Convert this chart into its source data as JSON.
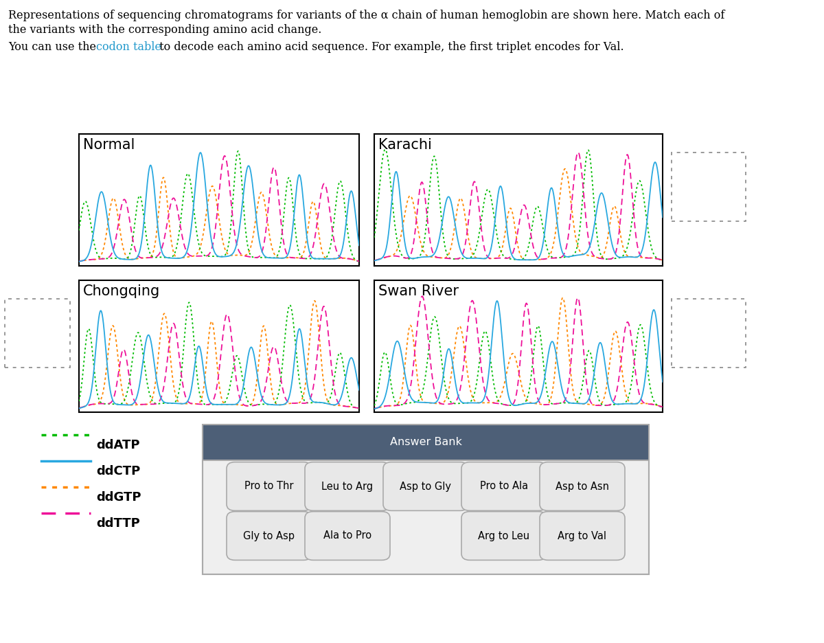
{
  "title_line1": "Representations of sequencing chromatograms for variants of the α chain of human hemoglobin are shown here. Match each of",
  "title_line2": "the variants with the corresponding amino acid change.",
  "subtitle_plain1": "You can use the ",
  "subtitle_link": "codon table",
  "subtitle_plain2": " to decode each amino acid sequence. For example, the first triplet encodes for Val.",
  "panels": [
    "Normal",
    "Karachi",
    "Chongqing",
    "Swan River"
  ],
  "legend_items": [
    {
      "label": "ddATP",
      "color": "#00bb00",
      "linestyle": "dotted"
    },
    {
      "label": "ddCTP",
      "color": "#29a8e0",
      "linestyle": "solid"
    },
    {
      "label": "ddGTP",
      "color": "#ff8800",
      "linestyle": "dotted"
    },
    {
      "label": "ddTTP",
      "color": "#ee1199",
      "linestyle": "dashed"
    }
  ],
  "answer_bank_header": "Answer Bank",
  "answer_bank_header_bg": "#4d5f77",
  "answer_bank_row1": [
    "Pro to Thr",
    "Leu to Arg",
    "Asp to Gly",
    "Pro to Ala",
    "Asp to Asn"
  ],
  "answer_bank_row2": [
    "Gly to Asp",
    "Ala to Pro",
    "Arg to Leu",
    "Arg to Val"
  ],
  "colors": {
    "ddATP": "#00bb00",
    "ddCTP": "#29a8e0",
    "ddGTP": "#ff8800",
    "ddTTP": "#ee1199"
  },
  "bg_color": "#ffffff",
  "link_color": "#2299cc"
}
